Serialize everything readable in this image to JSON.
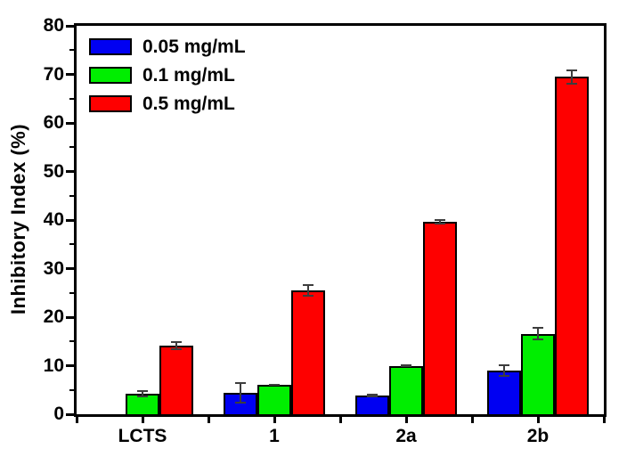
{
  "chart_data": {
    "type": "bar",
    "title": "",
    "xlabel": "",
    "ylabel": "Inhibitory Index (%)",
    "ylim": [
      0,
      80
    ],
    "yticks_major": [
      0,
      10,
      20,
      30,
      40,
      50,
      60,
      70,
      80
    ],
    "yticks_minor": [
      5,
      15,
      25,
      35,
      45,
      55,
      65,
      75
    ],
    "categories": [
      "LCTS",
      "1",
      "2a",
      "2b"
    ],
    "series": [
      {
        "name": "0.05 mg/mL",
        "color": "#0000f2",
        "values": [
          0,
          4.4,
          3.8,
          9.0
        ],
        "errors": [
          0,
          2.2,
          0.4,
          1.2
        ]
      },
      {
        "name": "0.1 mg/mL",
        "color": "#00ee00",
        "values": [
          4.2,
          6.1,
          10.0,
          16.6
        ],
        "errors": [
          0.7,
          0.2,
          0.3,
          1.4
        ]
      },
      {
        "name": "0.5 mg/mL",
        "color": "#fe0000",
        "values": [
          14.2,
          25.5,
          39.6,
          69.5
        ],
        "errors": [
          0.9,
          1.3,
          0.6,
          1.6
        ]
      }
    ],
    "legend_position": "top-left",
    "grid": false,
    "axis_color": "#000000",
    "error_bar_color": "#3d3d3d",
    "background": "#ffffff"
  }
}
